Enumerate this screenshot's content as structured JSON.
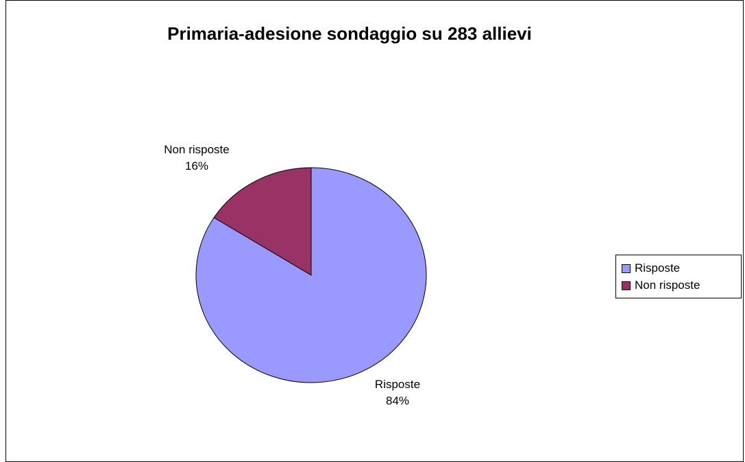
{
  "chart_data": {
    "type": "pie",
    "title": "Primaria-adesione sondaggio su 283 allievi",
    "slices": [
      {
        "label": "Risposte",
        "percent": 84,
        "value_label": "84%",
        "color": "#9999FF"
      },
      {
        "label": "Non risposte",
        "percent": 16,
        "value_label": "16%",
        "color": "#993366"
      }
    ],
    "legend": {
      "placement": "right",
      "entries": [
        "Risposte",
        "Non risposte"
      ]
    }
  }
}
